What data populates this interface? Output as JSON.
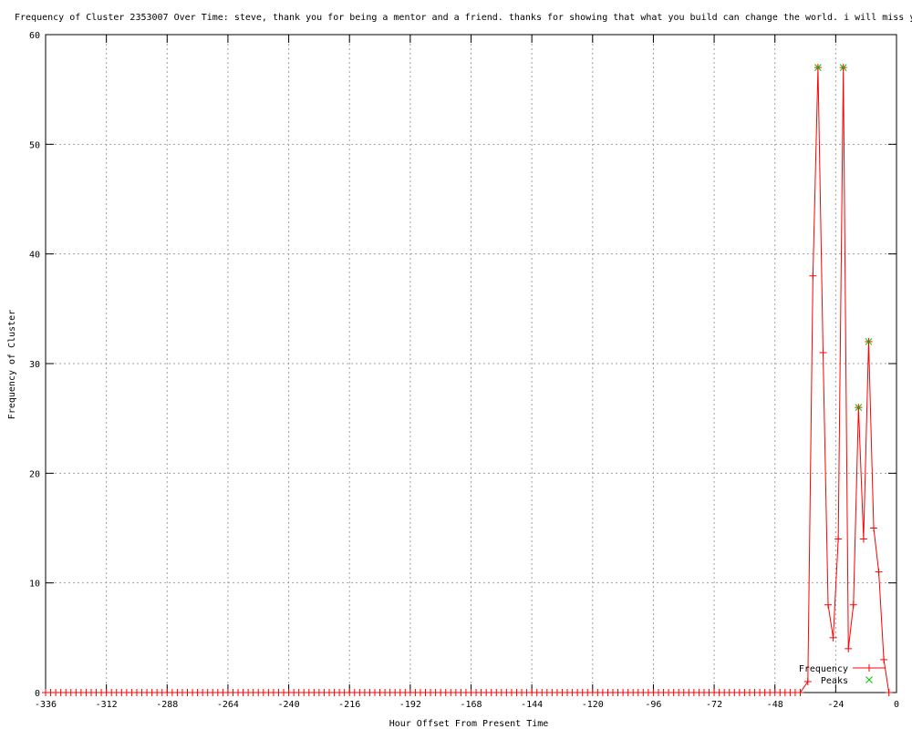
{
  "chart_data": {
    "type": "line",
    "title": "Frequency of Cluster 2353007 Over Time: steve, thank you for being a mentor and a friend. thanks for showing that what you build can change the world. i will miss y",
    "xlabel": "Hour Offset From Present Time",
    "ylabel": "Frequency of Cluster",
    "xlim": [
      -336,
      0
    ],
    "ylim": [
      0,
      60
    ],
    "xticks": [
      -336,
      -312,
      -288,
      -264,
      -240,
      -216,
      -192,
      -168,
      -144,
      -120,
      -96,
      -72,
      -48,
      -24,
      0
    ],
    "yticks": [
      0,
      10,
      20,
      30,
      40,
      50,
      60
    ],
    "grid": true,
    "legend_position": "bottom-right",
    "series": [
      {
        "name": "Frequency",
        "color": "#ff0000",
        "marker": "plus",
        "zero_range": [
          -336,
          -37,
          2
        ],
        "points": [
          [
            -35,
            1
          ],
          [
            -33,
            38
          ],
          [
            -31,
            57
          ],
          [
            -29,
            31
          ],
          [
            -27,
            8
          ],
          [
            -25,
            5
          ],
          [
            -23,
            14
          ],
          [
            -21,
            57
          ],
          [
            -19,
            4
          ],
          [
            -17,
            8
          ],
          [
            -15,
            26
          ],
          [
            -13,
            14
          ],
          [
            -11,
            32
          ],
          [
            -9,
            15
          ],
          [
            -7,
            11
          ],
          [
            -5,
            3
          ],
          [
            -3,
            0
          ]
        ]
      },
      {
        "name": "Peaks",
        "color": "#00c000",
        "marker": "x",
        "points": [
          [
            -31,
            57
          ],
          [
            -21,
            57
          ],
          [
            -15,
            26
          ],
          [
            -11,
            32
          ]
        ]
      }
    ]
  }
}
